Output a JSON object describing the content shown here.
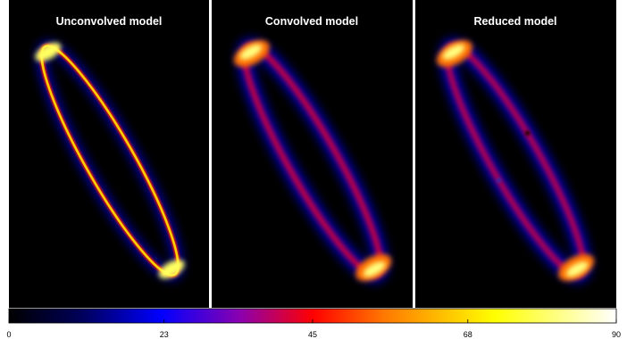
{
  "panels": [
    {
      "title": "Unconvolved model"
    },
    {
      "title": "Convolved model"
    },
    {
      "title": "Reduced model"
    }
  ],
  "colorbar": {
    "range": [
      0,
      90
    ],
    "ticks": [
      0,
      23,
      45,
      68,
      90
    ]
  }
}
